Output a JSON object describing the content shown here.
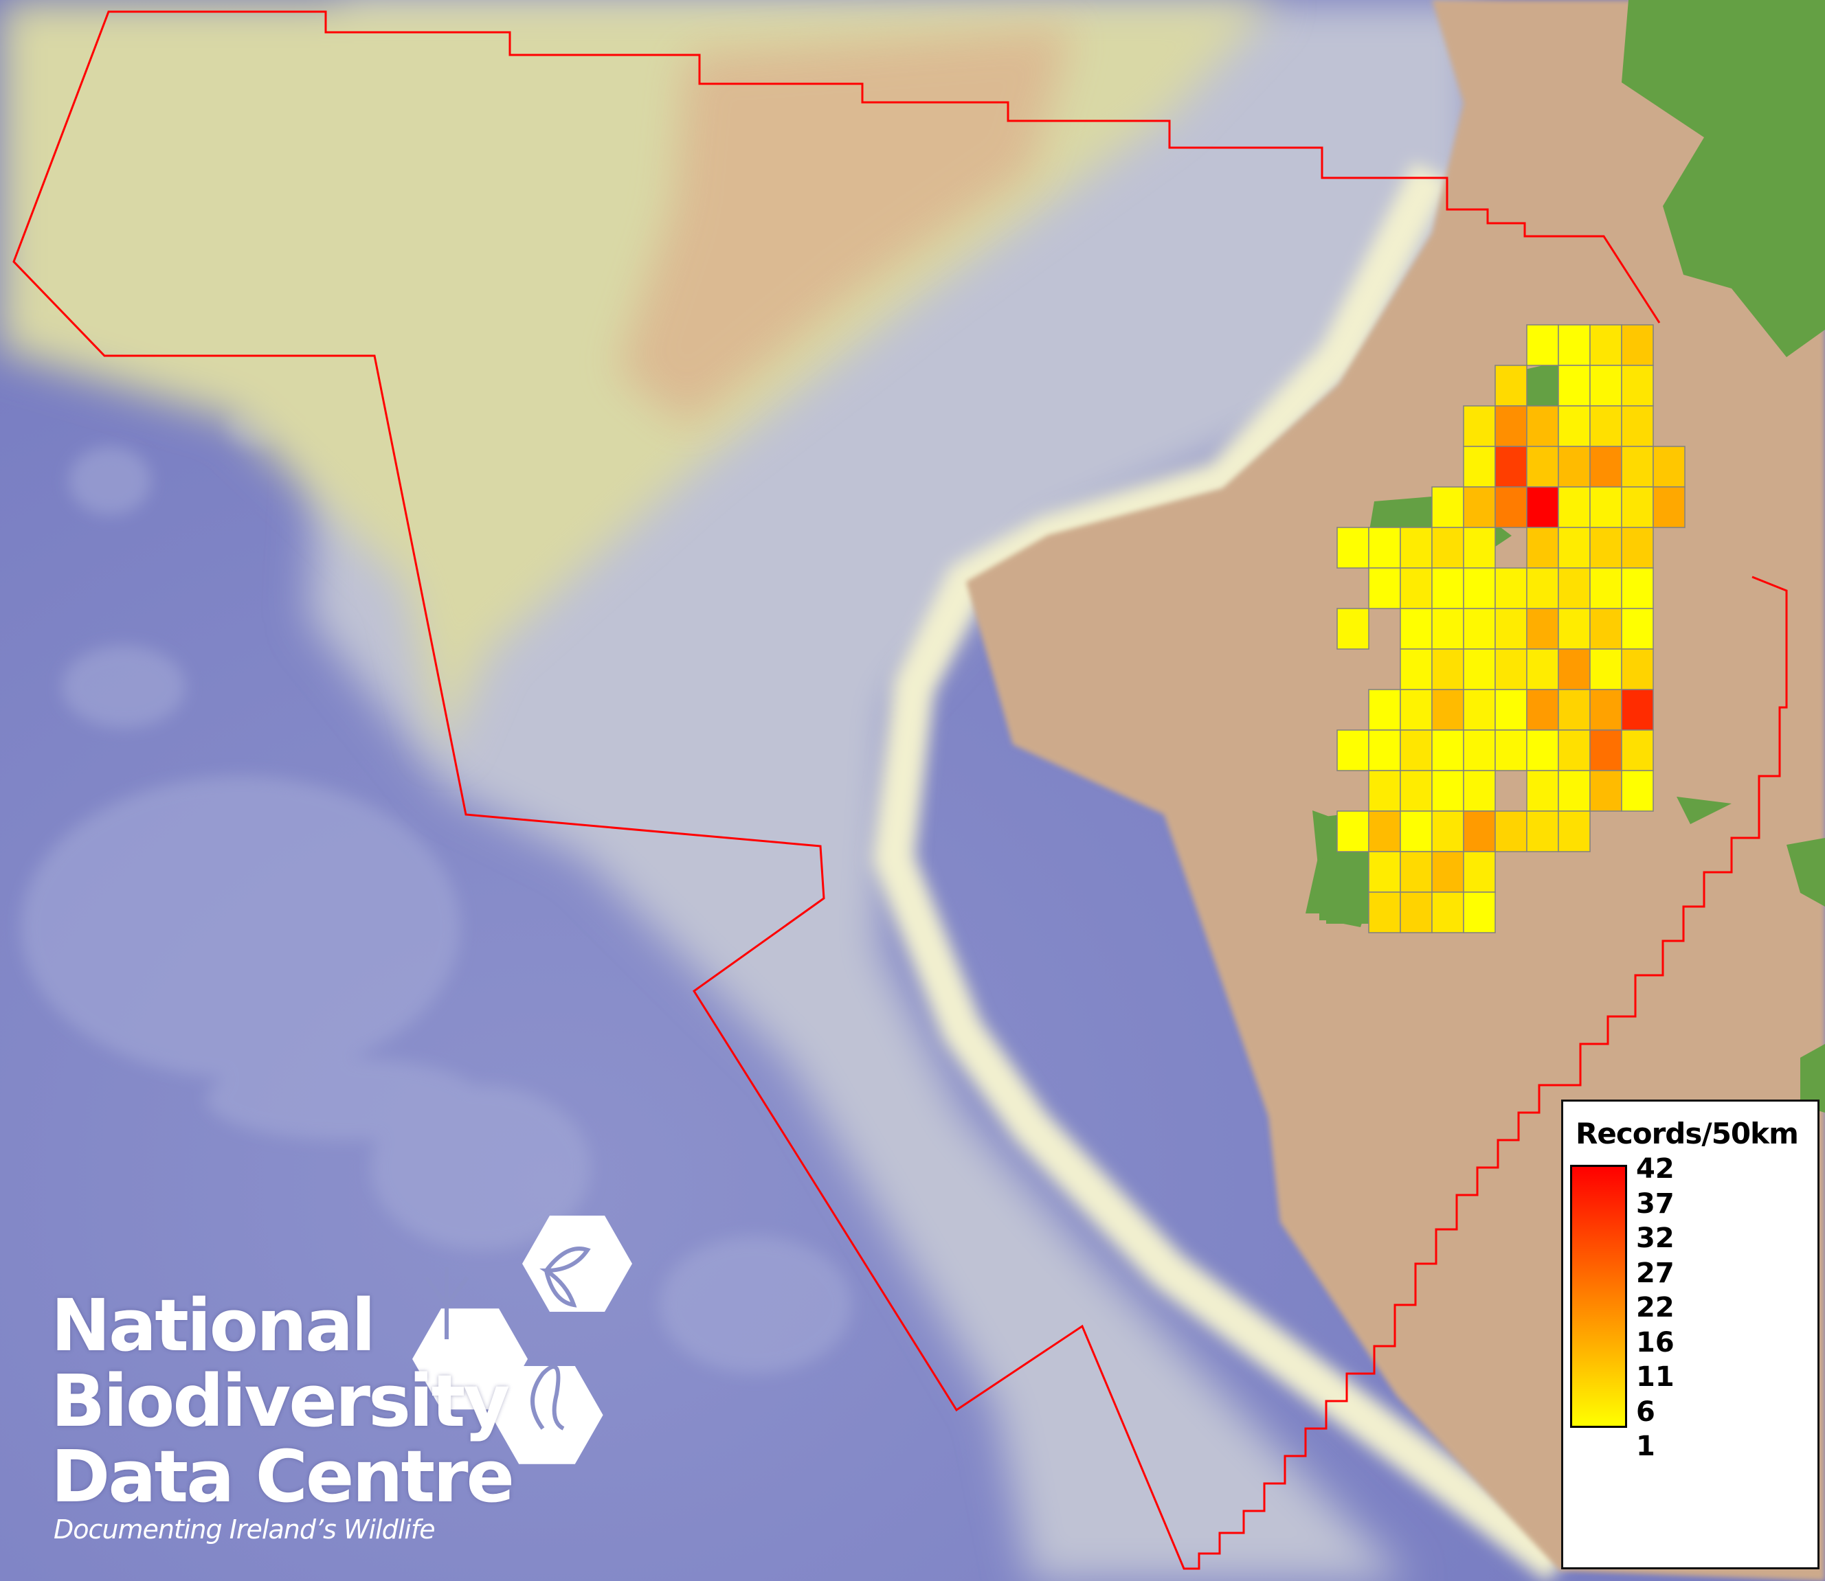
{
  "map": {
    "colors": {
      "deep_ocean": "#7a80c4",
      "slope": "#c3c6d2",
      "shelf": "#d9d8a6",
      "shelf_warm": "#dcb58f",
      "land": "#cdaa8b",
      "vegetation": "#64a044",
      "boundary": "#ff0000",
      "grid_line": "#808080"
    }
  },
  "grid": {
    "value_range": [
      1,
      42
    ],
    "color_low": "#ffff00",
    "color_high": "#ff0000",
    "rows": [
      [
        null,
        null,
        null,
        null,
        null,
        null,
        1,
        1,
        5,
        10,
        null
      ],
      [
        null,
        null,
        null,
        null,
        null,
        7,
        null,
        1,
        2,
        5,
        null
      ],
      [
        null,
        null,
        null,
        null,
        5,
        19,
        12,
        3,
        6,
        7,
        null
      ],
      [
        null,
        null,
        null,
        null,
        3,
        32,
        10,
        12,
        19,
        7,
        10
      ],
      [
        null,
        null,
        null,
        2,
        12,
        22,
        42,
        3,
        3,
        5,
        15
      ],
      [
        1,
        1,
        4,
        6,
        3,
        null,
        10,
        4,
        8,
        9,
        null
      ],
      [
        null,
        1,
        4,
        1,
        1,
        3,
        4,
        6,
        2,
        1,
        null
      ],
      [
        2,
        null,
        1,
        2,
        2,
        4,
        14,
        4,
        9,
        1,
        null
      ],
      [
        null,
        null,
        2,
        6,
        2,
        5,
        4,
        17,
        2,
        8,
        null
      ],
      [
        null,
        1,
        3,
        12,
        3,
        1,
        17,
        8,
        16,
        35,
        null
      ],
      [
        1,
        1,
        5,
        1,
        2,
        2,
        1,
        6,
        24,
        6,
        null
      ],
      [
        null,
        4,
        4,
        1,
        2,
        null,
        3,
        2,
        12,
        1,
        null
      ],
      [
        1,
        12,
        1,
        5,
        17,
        8,
        6,
        6,
        null,
        null,
        null
      ],
      [
        null,
        4,
        7,
        12,
        4,
        null,
        null,
        null,
        null,
        null,
        null
      ],
      [
        null,
        7,
        8,
        5,
        1,
        null,
        null,
        null,
        null,
        null,
        null
      ]
    ]
  },
  "legend": {
    "title": "Records/50km",
    "labels": [
      "42",
      "37",
      "32",
      "27",
      "22",
      "16",
      "11",
      "6",
      "1"
    ],
    "gradient_top": "#ff0000",
    "gradient_bottom": "#ffff00"
  },
  "logo": {
    "line1": "National",
    "line2": "Biodiversity",
    "line3": "Data Centre",
    "tagline": "Documenting Ireland’s Wildlife",
    "icons": [
      "tree-icon",
      "butterfly-icon",
      "seahorse-icon"
    ]
  }
}
